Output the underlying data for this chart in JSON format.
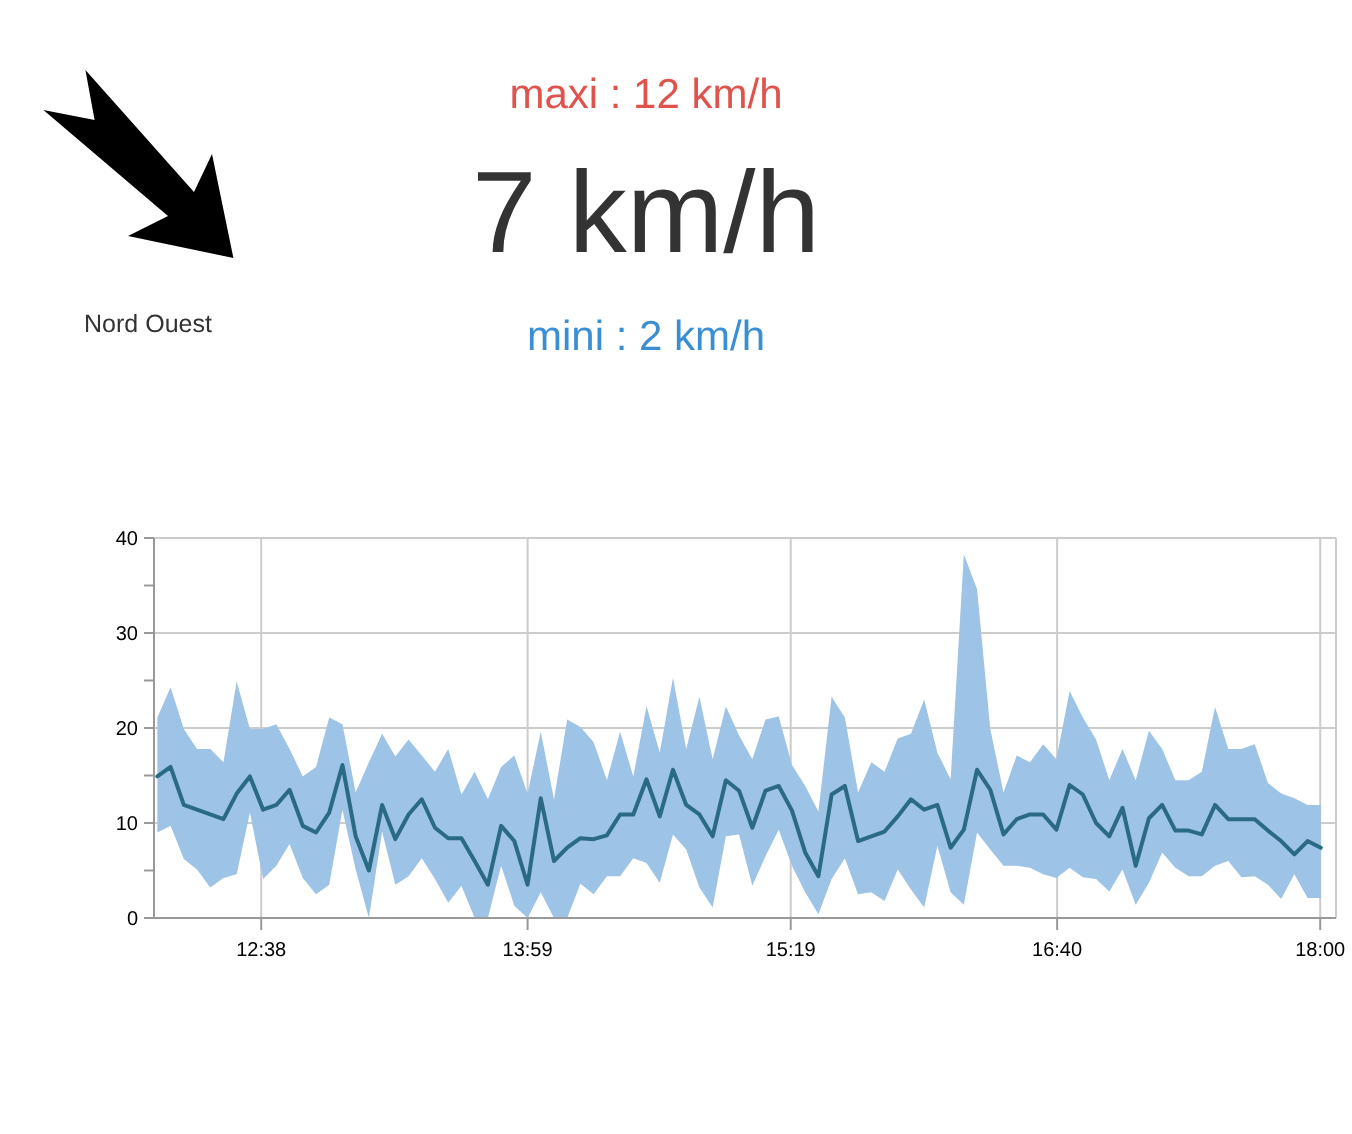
{
  "chart_data": {
    "type": "line",
    "annotations": [
      "maxi : 12 km/h",
      "7 km/h",
      "mini : 2 km/h",
      "Nord Ouest"
    ],
    "x": [
      12.107,
      12.174,
      12.241,
      12.308,
      12.375,
      12.442,
      12.509,
      12.576,
      12.643,
      12.71,
      12.777,
      12.844,
      12.911,
      12.978,
      13.045,
      13.112,
      13.179,
      13.246,
      13.313,
      13.38,
      13.447,
      13.514,
      13.581,
      13.648,
      13.715,
      13.782,
      13.849,
      13.916,
      13.983,
      14.05,
      14.117,
      14.184,
      14.251,
      14.318,
      14.385,
      14.452,
      14.519,
      14.586,
      14.653,
      14.72,
      14.787,
      14.854,
      14.921,
      14.988,
      15.055,
      15.122,
      15.189,
      15.256,
      15.323,
      15.39,
      15.457,
      15.524,
      15.591,
      15.658,
      15.725,
      15.792,
      15.859,
      15.926,
      15.993,
      16.06,
      16.127,
      16.194,
      16.261,
      16.328,
      16.395,
      16.462,
      16.529,
      16.596,
      16.663,
      16.73,
      16.797,
      16.864,
      16.931,
      16.998,
      17.065,
      17.132,
      17.199,
      17.266,
      17.333,
      17.4,
      17.467,
      17.534,
      17.601,
      17.668,
      17.735,
      17.802,
      17.869,
      17.936,
      18.003
    ],
    "series": [
      {
        "color": "#2b6a84",
        "values": [
          14.9,
          15.9,
          11.9,
          11.4,
          10.9,
          10.4,
          13.1,
          14.9,
          11.4,
          11.9,
          13.5,
          9.7,
          9.0,
          11.1,
          16.1,
          8.6,
          5.0,
          11.9,
          8.3,
          10.9,
          12.5,
          9.5,
          8.4,
          8.4,
          6.0,
          3.5,
          9.7,
          8.1,
          3.5,
          12.6,
          6.0,
          7.4,
          8.4,
          8.3,
          8.7,
          10.9,
          10.9,
          14.6,
          10.7,
          15.6,
          11.9,
          10.9,
          8.6,
          14.5,
          13.4,
          9.5,
          13.4,
          13.9,
          11.3,
          6.9,
          4.4,
          13.0,
          13.9,
          8.1,
          8.6,
          9.1,
          10.7,
          12.5,
          11.4,
          11.9,
          7.4,
          9.3,
          15.6,
          13.5,
          8.8,
          10.4,
          10.9,
          10.9,
          9.3,
          14.0,
          13.0,
          10.0,
          8.6,
          11.6,
          5.5,
          10.5,
          11.9,
          9.2,
          9.2,
          8.8,
          11.9,
          10.4,
          10.4,
          10.4,
          9.2,
          8.1,
          6.7,
          8.1,
          7.4
        ],
        "lower": [
          9.0,
          9.7,
          6.2,
          5.1,
          3.2,
          4.2,
          4.6,
          11.1,
          4.1,
          5.5,
          7.8,
          4.2,
          2.5,
          3.5,
          11.4,
          5.1,
          0,
          9.1,
          3.5,
          4.4,
          6.3,
          4.1,
          1.6,
          3.4,
          0,
          0,
          5.5,
          1.3,
          0,
          2.7,
          0,
          0,
          3.6,
          2.5,
          4.4,
          4.4,
          6.3,
          5.8,
          3.7,
          8.8,
          7.2,
          3.2,
          1.1,
          8.6,
          8.8,
          3.4,
          6.5,
          9.3,
          5.5,
          2.7,
          0.4,
          4.1,
          6.3,
          2.5,
          2.7,
          1.8,
          5.1,
          3.0,
          1.1,
          7.6,
          2.7,
          1.4,
          9.0,
          7.2,
          5.5,
          5.5,
          5.3,
          4.6,
          4.2,
          5.3,
          4.3,
          4.1,
          2.8,
          5.1,
          1.4,
          3.7,
          6.9,
          5.3,
          4.4,
          4.4,
          5.5,
          6.0,
          4.3,
          4.4,
          3.5,
          2.0,
          4.6,
          2.1,
          2.1
        ],
        "upper": [
          21.1,
          24.3,
          19.9,
          17.8,
          17.8,
          16.4,
          24.9,
          19.9,
          19.9,
          20.4,
          17.8,
          14.9,
          15.9,
          21.1,
          20.4,
          13.2,
          16.4,
          19.4,
          17.0,
          18.8,
          17.1,
          15.4,
          17.8,
          13.0,
          15.4,
          12.5,
          15.9,
          17.1,
          13.1,
          19.6,
          12.5,
          20.9,
          20.1,
          18.5,
          14.5,
          19.6,
          14.9,
          22.3,
          17.4,
          25.3,
          17.8,
          23.3,
          16.7,
          22.3,
          19.2,
          16.7,
          20.9,
          21.2,
          16.1,
          13.9,
          11.2,
          23.3,
          21.1,
          13.2,
          16.4,
          15.4,
          18.9,
          19.4,
          23.0,
          17.4,
          14.6,
          38.3,
          34.6,
          19.9,
          13.2,
          17.1,
          16.4,
          18.3,
          16.7,
          23.9,
          21.1,
          18.8,
          14.5,
          17.8,
          14.5,
          19.7,
          17.8,
          14.5,
          14.5,
          15.4,
          22.2,
          17.8,
          17.8,
          18.3,
          14.2,
          13.1,
          12.6,
          11.9,
          11.9
        ]
      }
    ],
    "xlim": [
      12.09,
      18.08
    ],
    "xticks": [
      {
        "value": 12.6333,
        "label": "12:38"
      },
      {
        "value": 13.9833,
        "label": "13:59"
      },
      {
        "value": 15.3167,
        "label": "15:19"
      },
      {
        "value": 16.6667,
        "label": "16:40"
      },
      {
        "value": 18.0,
        "label": "18:00"
      }
    ],
    "ylim": [
      0,
      40
    ],
    "yticks": [
      0,
      {
        "value": 5,
        "label": null
      },
      10,
      {
        "value": 15,
        "label": null
      },
      20,
      {
        "value": 25,
        "label": null
      },
      30,
      {
        "value": 35,
        "label": null
      },
      40
    ],
    "grid": true
  }
}
